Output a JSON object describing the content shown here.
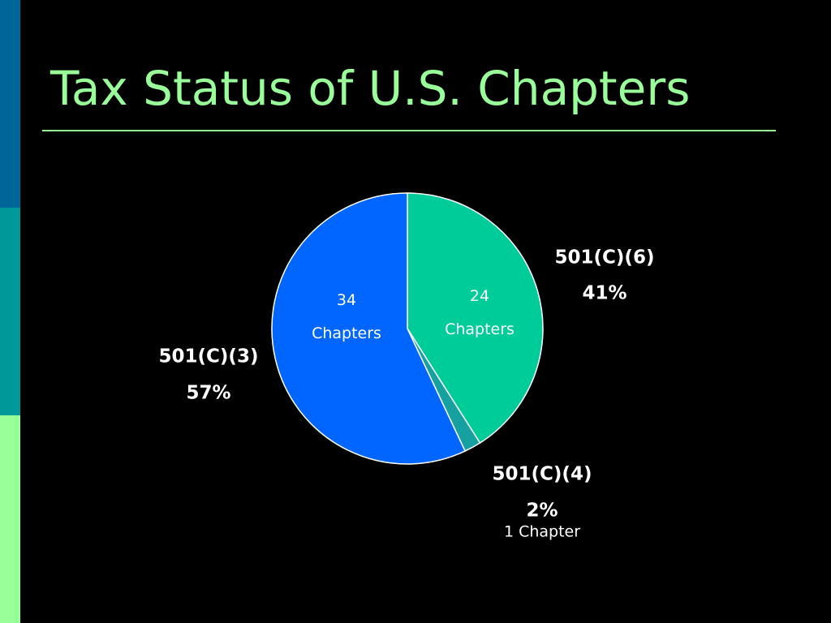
{
  "chart_data": {
    "type": "pie",
    "title": "Tax Status of U.S. Chapters",
    "categories": [
      "501(C)(6)",
      "501(C)(4)",
      "501(C)(3)"
    ],
    "values": [
      41,
      2,
      57
    ],
    "value_labels": [
      "41%",
      "2%",
      "57%"
    ],
    "chapter_labels": [
      "24 Chapters",
      "1 Chapter",
      "34 Chapters"
    ],
    "colors": [
      "#00cc99",
      "#17a0a0",
      "#0066ff"
    ]
  }
}
